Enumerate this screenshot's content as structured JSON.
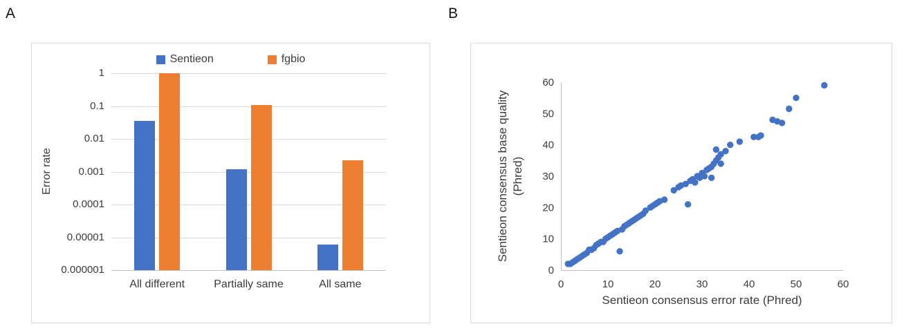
{
  "figure": {
    "panel_a_label": "A",
    "panel_b_label": "B"
  },
  "chart_data": [
    {
      "type": "bar",
      "panel": "A",
      "ylabel": "Error rate",
      "yscale": "log",
      "ylim": [
        1e-06,
        1
      ],
      "ytick_labels": [
        "1",
        "0.1",
        "0.01",
        "0.001",
        "0.0001",
        "0.00001",
        "0.000001"
      ],
      "categories": [
        "All different",
        "Partially same",
        "All same"
      ],
      "series": [
        {
          "name": "Sentieon",
          "color": "#4472C4",
          "values": [
            0.035,
            0.0012,
            6e-06
          ]
        },
        {
          "name": "fgbio",
          "color": "#ED7D31",
          "values": [
            1.0,
            0.105,
            0.0022
          ]
        }
      ],
      "legend_position": "top",
      "grid": true
    },
    {
      "type": "scatter",
      "panel": "B",
      "xlabel": "Sentieon consensus error rate (Phred)",
      "ylabel_line1": "Sentieon consensus base quality",
      "ylabel_line2": "(Phred)",
      "xlim": [
        0,
        60
      ],
      "ylim": [
        0,
        60
      ],
      "xticks": [
        0,
        10,
        20,
        30,
        40,
        50,
        60
      ],
      "yticks": [
        0,
        10,
        20,
        30,
        40,
        50,
        60
      ],
      "marker_color": "#4472C4",
      "grid": false,
      "points": [
        [
          1.5,
          2
        ],
        [
          2,
          2
        ],
        [
          2.5,
          2.5
        ],
        [
          3,
          3
        ],
        [
          3.5,
          3.5
        ],
        [
          4,
          4
        ],
        [
          4.5,
          4.5
        ],
        [
          5,
          5
        ],
        [
          5.5,
          5.5
        ],
        [
          6,
          6.5
        ],
        [
          6.5,
          6.5
        ],
        [
          7,
          7
        ],
        [
          7.5,
          8
        ],
        [
          8,
          8.5
        ],
        [
          8.5,
          9
        ],
        [
          9,
          9
        ],
        [
          9.5,
          10
        ],
        [
          10,
          10.5
        ],
        [
          10.5,
          11
        ],
        [
          11,
          11.5
        ],
        [
          11.5,
          12
        ],
        [
          12,
          12.5
        ],
        [
          12.5,
          6
        ],
        [
          13,
          13
        ],
        [
          13.5,
          14
        ],
        [
          14,
          14.5
        ],
        [
          14.5,
          15
        ],
        [
          15,
          15.5
        ],
        [
          15.5,
          16
        ],
        [
          16,
          16.5
        ],
        [
          16.5,
          17
        ],
        [
          17,
          17.5
        ],
        [
          17.5,
          18
        ],
        [
          18,
          19
        ],
        [
          19,
          20
        ],
        [
          19.5,
          20.5
        ],
        [
          20,
          21
        ],
        [
          20.5,
          21.5
        ],
        [
          21,
          22
        ],
        [
          22,
          22.5
        ],
        [
          24,
          25.5
        ],
        [
          25,
          26.5
        ],
        [
          25.5,
          27
        ],
        [
          26.5,
          27.5
        ],
        [
          27,
          21
        ],
        [
          27.5,
          28.5
        ],
        [
          28,
          29
        ],
        [
          28.5,
          28
        ],
        [
          29,
          30
        ],
        [
          29.5,
          29.5
        ],
        [
          30,
          31
        ],
        [
          30.5,
          30
        ],
        [
          31,
          32
        ],
        [
          31.5,
          32.5
        ],
        [
          32,
          33
        ],
        [
          32,
          29.5
        ],
        [
          32.5,
          34
        ],
        [
          33,
          35
        ],
        [
          33,
          38.5
        ],
        [
          33.5,
          36
        ],
        [
          34,
          34
        ],
        [
          34,
          37
        ],
        [
          35,
          38
        ],
        [
          36,
          40
        ],
        [
          38,
          41
        ],
        [
          41,
          42.5
        ],
        [
          42,
          42.5
        ],
        [
          42.5,
          43
        ],
        [
          45,
          48
        ],
        [
          46,
          47.5
        ],
        [
          47,
          47
        ],
        [
          48.5,
          51.5
        ],
        [
          50,
          55
        ],
        [
          56,
          59
        ]
      ]
    }
  ]
}
